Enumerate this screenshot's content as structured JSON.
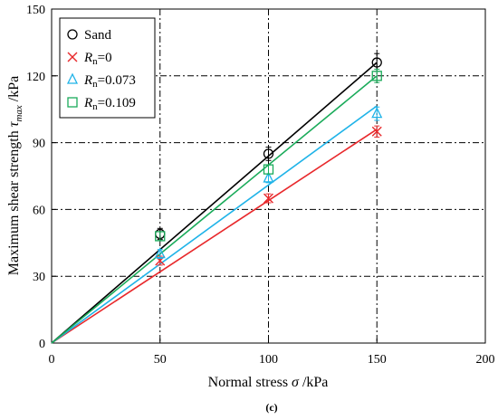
{
  "chart_data": {
    "type": "scatter",
    "xlabel": "Normal stress σ /kPa",
    "ylabel": "Maximum shear strength τmax /kPa",
    "xlim": [
      0,
      200
    ],
    "ylim": [
      0,
      150
    ],
    "x_ticks": [
      0,
      50,
      100,
      150,
      200
    ],
    "y_ticks": [
      0,
      30,
      60,
      90,
      120,
      150
    ],
    "grid": "dash-dot major gridlines",
    "legend_position": "top-left",
    "caption": "(c)",
    "series": [
      {
        "name": "Sand",
        "marker": "circle",
        "color": "#000000",
        "x": [
          50,
          100,
          150
        ],
        "y": [
          49,
          85,
          126
        ],
        "error": [
          2.5,
          3,
          4
        ],
        "fit_slope": 0.84
      },
      {
        "name": "Rn=0",
        "name_parts": {
          "var": "R",
          "sub": "n",
          "rest": "=0"
        },
        "marker": "x",
        "color": "#e8282b",
        "x": [
          50,
          100,
          150
        ],
        "y": [
          37,
          65,
          95
        ],
        "error": [
          2,
          2,
          2.5
        ],
        "fit_slope": 0.64
      },
      {
        "name": "Rn=0.073",
        "name_parts": {
          "var": "R",
          "sub": "n",
          "rest": "=0.073"
        },
        "marker": "triangle",
        "color": "#1fb3e8",
        "x": [
          50,
          100,
          150
        ],
        "y": [
          40,
          74,
          103
        ],
        "error": [
          2,
          2,
          3
        ],
        "fit_slope": 0.71
      },
      {
        "name": "Rn=0.109",
        "name_parts": {
          "var": "R",
          "sub": "n",
          "rest": "=0.109"
        },
        "marker": "square",
        "color": "#1aab5a",
        "x": [
          50,
          100,
          150
        ],
        "y": [
          48,
          78,
          120
        ],
        "error": [
          2,
          2,
          3
        ],
        "fit_slope": 0.8
      }
    ]
  }
}
